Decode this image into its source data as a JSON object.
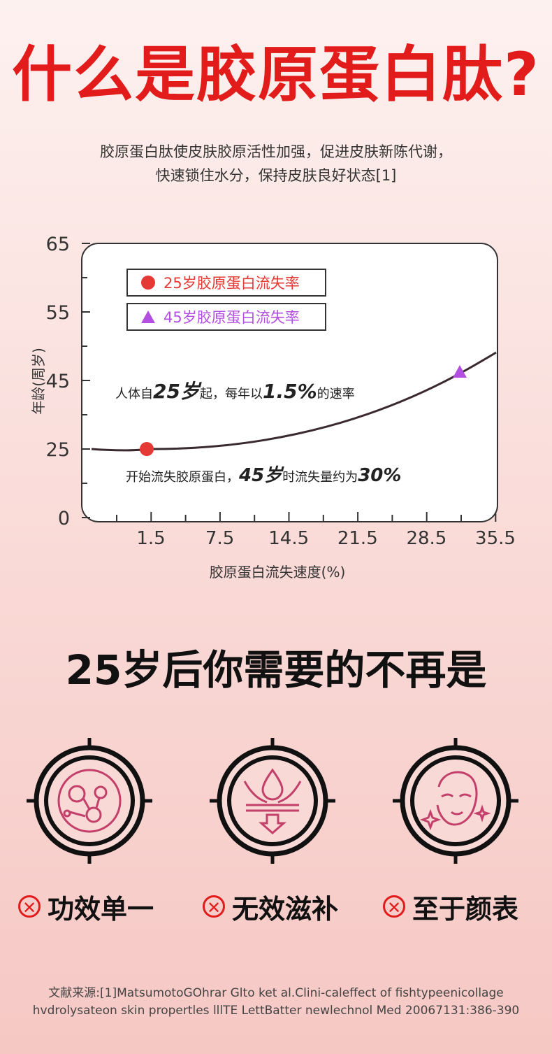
{
  "page": {
    "title": "什么是胶原蛋白肽?",
    "subtitle_line1": "胶原蛋白肽使皮肤胶原活性加强，促进皮肤新陈代谢，",
    "subtitle_line2": "快速锁住水分，保持皮肤良好状态[1]"
  },
  "chart_data": {
    "type": "line",
    "xlabel": "胶原蛋白流失速度(%)",
    "ylabel": "年龄(周岁)",
    "x_ticks": [
      "1.5",
      "7.5",
      "14.5",
      "21.5",
      "28.5",
      "35.5"
    ],
    "y_ticks": [
      "0",
      "25",
      "45",
      "55",
      "65"
    ],
    "legend": [
      {
        "name": "25岁胶原蛋白流失率",
        "marker": "circle",
        "color": "#e53935"
      },
      {
        "name": "45岁胶原蛋白流失率",
        "marker": "triangle",
        "color": "#b34fe0"
      }
    ],
    "points": [
      {
        "label": "25岁",
        "x_index": 0,
        "y_tick": "25"
      },
      {
        "label": "45岁",
        "x_index": 5,
        "y_tick": "45"
      }
    ],
    "annotations": {
      "line1_pre": "人体自",
      "line1_big1": "25岁",
      "line1_mid": "起，每年以",
      "line1_big2": "1.5%",
      "line1_post": "的速率",
      "line2_pre": "开始流失胶原蛋白，",
      "line2_big1": "45岁",
      "line2_mid": "时流失量约为",
      "line2_big2": "30%"
    }
  },
  "section2": {
    "heading": "25岁后你需要的不再是",
    "items": [
      {
        "label": "功效单一",
        "icon": "molecule-icon"
      },
      {
        "label": "无效滋补",
        "icon": "water-drop-absorb-icon"
      },
      {
        "label": "至于颜表",
        "icon": "face-sparkle-icon"
      }
    ],
    "x_mark": "✕"
  },
  "reference": {
    "line1": "文献来源:[1]MatsumotoGOhrar Glto ket al.Clini-caleffect of fishtypeenicollage",
    "line2": "hvdrolysateon skin propertles lllTE LettBatter newlechnol Med 20067131:386-390"
  },
  "colors": {
    "title_red": "#e21b1b",
    "curve": "#3a2a2e",
    "pink_icon": "#c2406a",
    "legend_red": "#e53935",
    "legend_purple": "#b34fe0"
  }
}
